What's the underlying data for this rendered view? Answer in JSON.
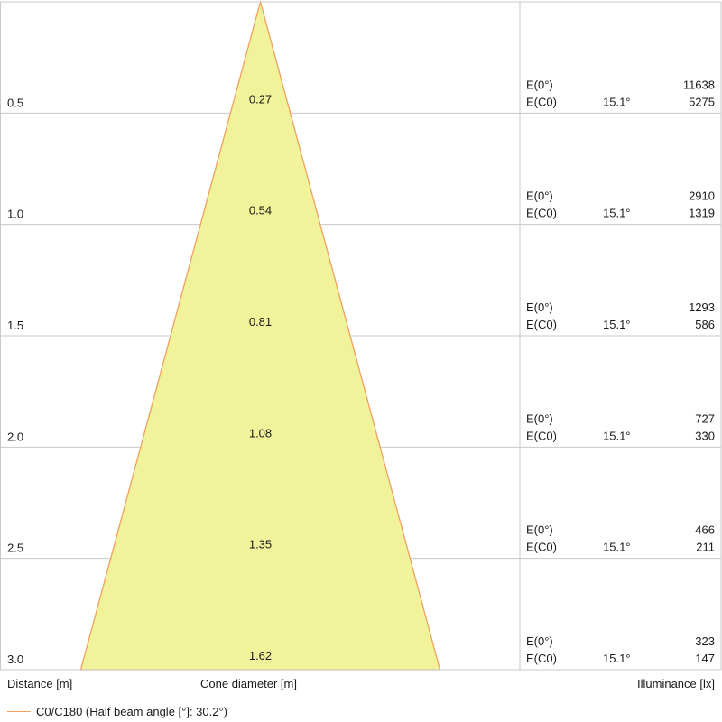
{
  "colors": {
    "cone_fill": "#f0f39a",
    "cone_edge": "#f0a060",
    "grid": "#c8c8c8"
  },
  "chart_data": {
    "type": "beam_cone",
    "max_distance": 3.0,
    "rows": [
      {
        "distance": "0.5",
        "diameter": "0.27",
        "e0_label": "E(0°)",
        "e0_value": "11638",
        "ec0_label": "E(C0)",
        "angle": "15.1°",
        "ec0_value": "5275"
      },
      {
        "distance": "1.0",
        "diameter": "0.54",
        "e0_label": "E(0°)",
        "e0_value": "2910",
        "ec0_label": "E(C0)",
        "angle": "15.1°",
        "ec0_value": "1319"
      },
      {
        "distance": "1.5",
        "diameter": "0.81",
        "e0_label": "E(0°)",
        "e0_value": "1293",
        "ec0_label": "E(C0)",
        "angle": "15.1°",
        "ec0_value": "586"
      },
      {
        "distance": "2.0",
        "diameter": "1.08",
        "e0_label": "E(0°)",
        "e0_value": "727",
        "ec0_label": "E(C0)",
        "angle": "15.1°",
        "ec0_value": "330"
      },
      {
        "distance": "2.5",
        "diameter": "1.35",
        "e0_label": "E(0°)",
        "e0_value": "466",
        "ec0_label": "E(C0)",
        "angle": "15.1°",
        "ec0_value": "211"
      },
      {
        "distance": "3.0",
        "diameter": "1.62",
        "e0_label": "E(0°)",
        "e0_value": "323",
        "ec0_label": "E(C0)",
        "angle": "15.1°",
        "ec0_value": "147"
      }
    ]
  },
  "footer": {
    "distance_label": "Distance [m]",
    "cone_label": "Cone diameter [m]",
    "illuminance_label": "Illuminance [lx]"
  },
  "legend": {
    "text": "C0/C180 (Half beam angle [°]: 30.2°)"
  }
}
